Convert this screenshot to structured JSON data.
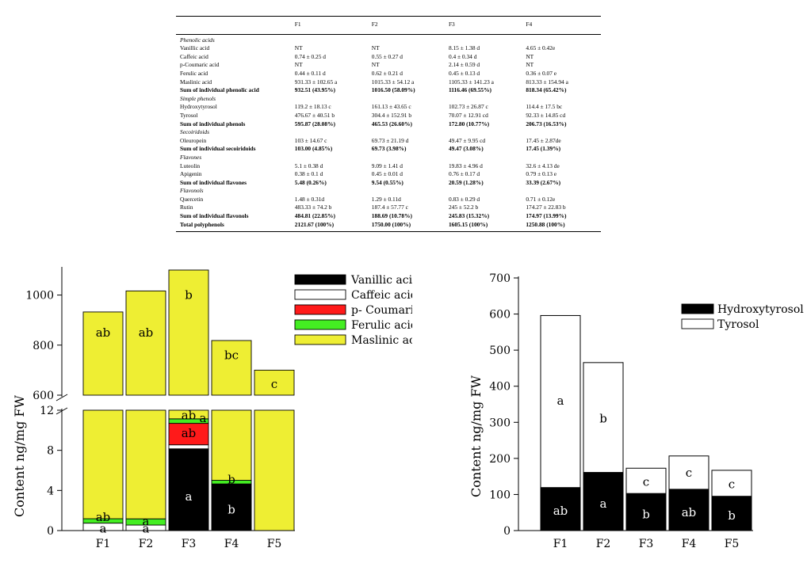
{
  "table": {
    "headers": [
      "",
      "F1",
      "F2",
      "F3",
      "F4"
    ],
    "rows": [
      {
        "kind": "section",
        "cells": [
          "Phenolic acids",
          "",
          "",
          "",
          ""
        ]
      },
      {
        "kind": "row",
        "cells": [
          "Vanillic acid",
          "NT",
          "NT",
          "8.15 ± 1.38 d",
          "4.65 ± 0.42e"
        ]
      },
      {
        "kind": "row",
        "cells": [
          "Caffeic acid",
          "0.74 ± 0.25 d",
          "0.55 ± 0.27 d",
          "0.4 ± 0.34 d",
          "NT"
        ]
      },
      {
        "kind": "row",
        "cells": [
          "p-Coumaric acid",
          "NT",
          "NT",
          "2.14 ± 0.59 d",
          "NT"
        ]
      },
      {
        "kind": "row",
        "cells": [
          "Ferulic acid",
          "0.44 ± 0.11 d",
          "0.62 ± 0.21 d",
          "0.45 ± 0.13 d",
          "0.36 ± 0.07 e"
        ]
      },
      {
        "kind": "row",
        "cells": [
          "Maslinic acid",
          "931.33 ± 102.65 a",
          "1015.33 ± 54.12 a",
          "1105.33 ± 141.23 a",
          "813.33 ± 154.94 a"
        ]
      },
      {
        "kind": "sum",
        "cells": [
          "Sum of individual phenolic acid",
          "932.51 (43.95%)",
          "1016.50 (58.09%)",
          "1116.46 (69.55%)",
          "818.34 (65.42%)"
        ]
      },
      {
        "kind": "section",
        "cells": [
          "Simple phenols",
          "",
          "",
          "",
          ""
        ]
      },
      {
        "kind": "row",
        "cells": [
          "Hydroxytyrosol",
          "119.2 ± 18.13 c",
          "161.13 ± 43.65 c",
          "102.73 ± 26.87 c",
          "114.4 ± 17.5 bc"
        ]
      },
      {
        "kind": "row",
        "cells": [
          "Tyrosol",
          "476.67 ± 40.51 b",
          "304.4 ± 152.91 b",
          "70.07 ± 12.91 cd",
          "92.33 ± 14.85 cd"
        ]
      },
      {
        "kind": "sum",
        "cells": [
          "Sum of individual phenols",
          "595.87 (28.08%)",
          "465.53 (26.60%)",
          "172.80 (10.77%)",
          "206.73 (16.53%)"
        ]
      },
      {
        "kind": "section",
        "cells": [
          "Secoiridoids",
          "",
          "",
          "",
          ""
        ]
      },
      {
        "kind": "row",
        "cells": [
          "Oleuropein",
          "103 ± 14.67 c",
          "69.73 ± 21.19 d",
          "49.47 ± 9.95 cd",
          "17.45 ± 2.87de"
        ]
      },
      {
        "kind": "sum",
        "cells": [
          "Sum of individual secoiridoids",
          "103.00 (4.85%)",
          "69.73 (3.98%)",
          "49.47 (3.08%)",
          "17.45 (1.39%)"
        ]
      },
      {
        "kind": "section",
        "cells": [
          "Flavones",
          "",
          "",
          "",
          ""
        ]
      },
      {
        "kind": "row",
        "cells": [
          "Luteolin",
          "5.1 ± 0.38 d",
          "9.09 ± 1.41 d",
          "19.83 ± 4.96 d",
          "32.6 ± 4.13 de"
        ]
      },
      {
        "kind": "row",
        "cells": [
          "Apigenin",
          "0.38 ± 0.1 d",
          "0.45 ± 0.01 d",
          "0.76 ± 0.17 d",
          "0.79 ± 0.13 e"
        ]
      },
      {
        "kind": "sum",
        "cells": [
          "Sum of individual flavones",
          "5.48 (0.26%)",
          "9.54 (0.55%)",
          "20.59 (1.28%)",
          "33.39 (2.67%)"
        ]
      },
      {
        "kind": "section",
        "cells": [
          "Flavonols",
          "",
          "",
          "",
          ""
        ]
      },
      {
        "kind": "row",
        "cells": [
          "Quercetin",
          "1.48 ± 0.31d",
          "1.29 ± 0.11d",
          "0.83 ± 0.29 d",
          "0.71 ± 0.12e"
        ]
      },
      {
        "kind": "row",
        "cells": [
          "Rutin",
          "483.33 ± 74.2 b",
          "187.4 ± 57.77 c",
          "245 ± 52.2 b",
          "174.27 ± 22.83 b"
        ]
      },
      {
        "kind": "sum",
        "cells": [
          "Sum of individual flavonols",
          "484.81 (22.85%)",
          "188.69 (10.78%)",
          "245.83 (15.32%)",
          "174.97 (13.99%)"
        ]
      },
      {
        "kind": "sum",
        "cells": [
          "Total polyphenols",
          "2121.67 (100%)",
          "1750.00 (100%)",
          "1605.15 (100%)",
          "1250.88 (100%)"
        ]
      }
    ]
  },
  "chart_data": [
    {
      "type": "bar",
      "stacked": true,
      "broken_axis": true,
      "categories": [
        "F1",
        "F2",
        "F3",
        "F4",
        "F5"
      ],
      "ylabel": "Content ng/mg FW",
      "ylim_lower": [
        0,
        12
      ],
      "ylim_upper": [
        600,
        1100
      ],
      "yticks_lower": [
        "0",
        "4",
        "8",
        "12"
      ],
      "yticks_upper": [
        "600",
        "800",
        "1000"
      ],
      "legend_position": "top-right",
      "series": [
        {
          "name": "Vanillic acid",
          "color": "#000000",
          "values": [
            0,
            0,
            8.15,
            4.65,
            0
          ]
        },
        {
          "name": "Caffeic acid",
          "color": "#ffffff",
          "values": [
            0.74,
            0.55,
            0.4,
            0,
            0
          ]
        },
        {
          "name": "p- Coumaric acid",
          "color": "#ff1a1a",
          "values": [
            0,
            0,
            2.14,
            0,
            0
          ]
        },
        {
          "name": "Ferulic acid",
          "color": "#44ee22",
          "values": [
            0.44,
            0.62,
            0.45,
            0.36,
            0
          ]
        },
        {
          "name": "Maslinic acid",
          "color": "#eeee33",
          "values": [
            931.33,
            1015.33,
            1105.33,
            813.33,
            700
          ]
        }
      ],
      "letters": [
        {
          "cat": "F1",
          "text": "a",
          "y": 0.18,
          "color": "#000000"
        },
        {
          "cat": "F1",
          "text": "ab",
          "y": 1.35,
          "color": "#000000"
        },
        {
          "cat": "F1",
          "text": "ab",
          "y": 850,
          "color": "#000000"
        },
        {
          "cat": "F2",
          "text": "a",
          "y": 0.18,
          "color": "#000000"
        },
        {
          "cat": "F2",
          "text": "a",
          "y": 0.9,
          "color": "#000000"
        },
        {
          "cat": "F2",
          "text": "ab",
          "y": 850,
          "color": "#000000"
        },
        {
          "cat": "F3",
          "text": "a",
          "y": 3.4,
          "color": "#ffffff"
        },
        {
          "cat": "F3",
          "text": "ab",
          "y": 9.7,
          "color": "#000000"
        },
        {
          "cat": "F3",
          "text": "ab",
          "y": 11.5,
          "color": "#000000"
        },
        {
          "cat": "F3",
          "text": "a",
          "dx": 18,
          "y": 11.2,
          "color": "#000000"
        },
        {
          "cat": "F3",
          "text": "b",
          "y": 1000,
          "color": "#000000"
        },
        {
          "cat": "F4",
          "text": "b",
          "y": 2.1,
          "color": "#ffffff"
        },
        {
          "cat": "F4",
          "text": "b",
          "y": 5.1,
          "color": "#000000"
        },
        {
          "cat": "F4",
          "text": "bc",
          "y": 760,
          "color": "#000000"
        },
        {
          "cat": "F5",
          "text": "c",
          "y": 645,
          "color": "#000000"
        }
      ]
    },
    {
      "type": "bar",
      "stacked": true,
      "categories": [
        "F1",
        "F2",
        "F3",
        "F4",
        "F5"
      ],
      "ylabel": "Content ng/mg FW",
      "ylim": [
        0,
        700
      ],
      "yticks": [
        "0",
        "100",
        "200",
        "300",
        "400",
        "500",
        "600",
        "700"
      ],
      "legend_position": "top-right",
      "series": [
        {
          "name": "Hydroxytyrosol",
          "color": "#000000",
          "values": [
            119.2,
            161.13,
            102.73,
            114.4,
            95
          ]
        },
        {
          "name": "Tyrosol",
          "color": "#ffffff",
          "values": [
            476.67,
            304.4,
            70.07,
            92.33,
            72
          ]
        }
      ],
      "letters": [
        {
          "cat": "F1",
          "text": "ab",
          "y": 55,
          "color": "#ffffff"
        },
        {
          "cat": "F1",
          "text": "a",
          "y": 360,
          "color": "#000000"
        },
        {
          "cat": "F2",
          "text": "a",
          "y": 75,
          "color": "#ffffff"
        },
        {
          "cat": "F2",
          "text": "b",
          "y": 310,
          "color": "#000000"
        },
        {
          "cat": "F3",
          "text": "b",
          "y": 45,
          "color": "#ffffff"
        },
        {
          "cat": "F3",
          "text": "c",
          "y": 135,
          "color": "#000000"
        },
        {
          "cat": "F4",
          "text": "ab",
          "y": 50,
          "color": "#ffffff"
        },
        {
          "cat": "F4",
          "text": "c",
          "y": 160,
          "color": "#000000"
        },
        {
          "cat": "F5",
          "text": "b",
          "y": 42,
          "color": "#ffffff"
        },
        {
          "cat": "F5",
          "text": "c",
          "y": 128,
          "color": "#000000"
        }
      ]
    }
  ]
}
